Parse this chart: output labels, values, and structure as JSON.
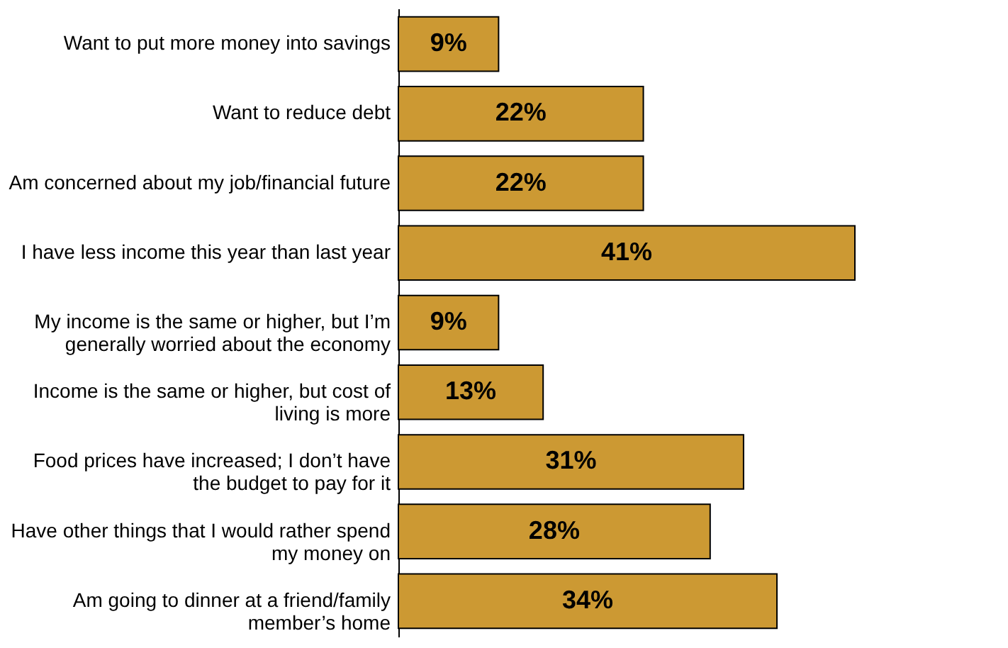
{
  "chart_data": {
    "type": "bar",
    "orientation": "horizontal",
    "tick_labels": "y",
    "categories": [
      "Want to put more money into savings",
      "Want to reduce debt",
      "Am concerned about my job/financial future",
      "I have less income this year than last year",
      "My income is the same or higher, but I’m generally worried about the economy",
      "Income is the same or higher, but cost of living is more",
      "Food prices have increased; I don’t have the budget to pay for it",
      "Have other things that I would rather spend my money on",
      "Am going to dinner at a friend/family member’s home"
    ],
    "values": [
      9,
      22,
      22,
      41,
      9,
      13,
      31,
      28,
      34
    ],
    "value_labels": [
      "9%",
      "22%",
      "22%",
      "41%",
      "9%",
      "13%",
      "31%",
      "28%",
      "34%"
    ],
    "color": "#cc9933"
  }
}
